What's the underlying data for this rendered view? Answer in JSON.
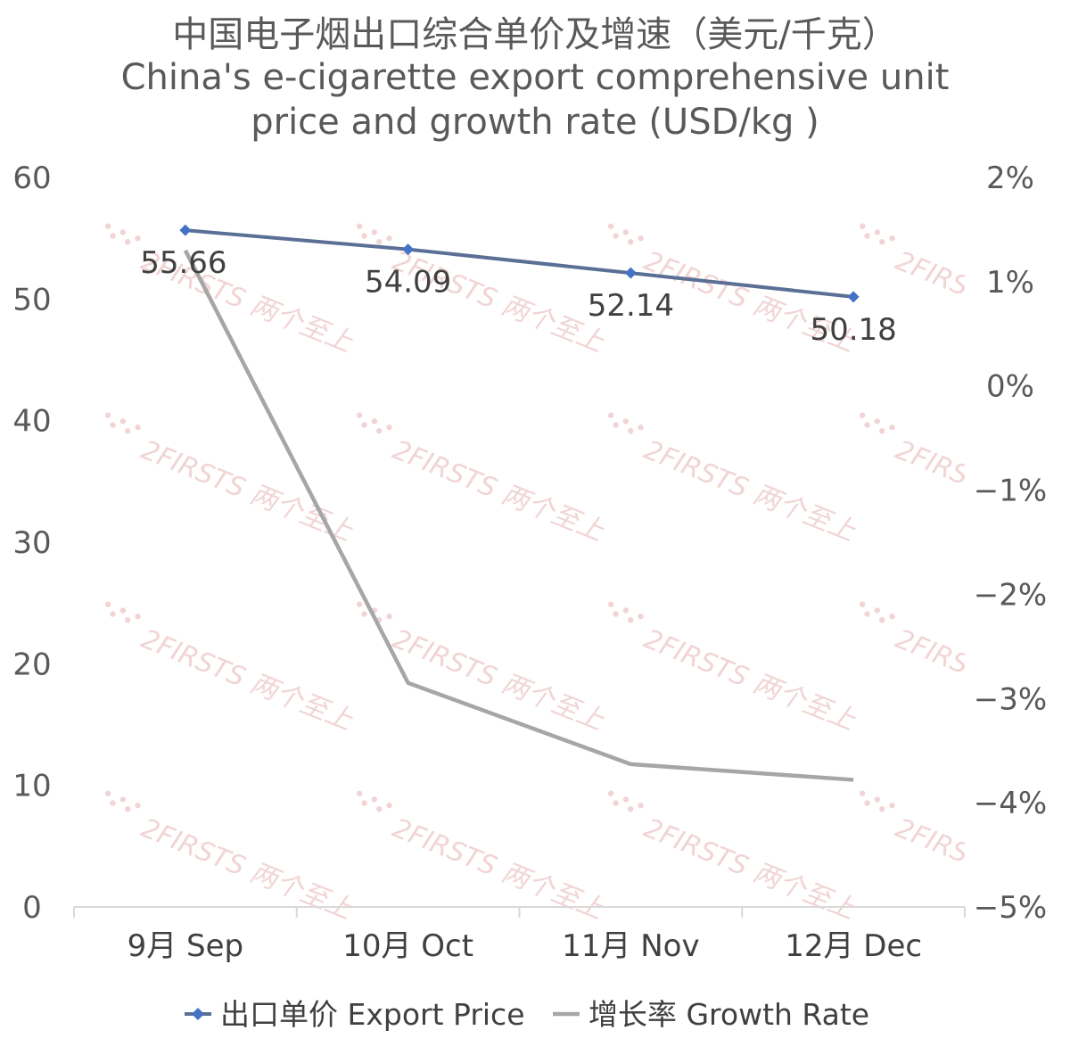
{
  "chart_data": {
    "type": "line",
    "title_lines": [
      "中国电子烟出口综合单价及增速（美元/千克）",
      "China's e-cigarette export comprehensive unit",
      "price and growth rate (USD/kg )"
    ],
    "categories": [
      "9月 Sep",
      "10月 Oct",
      "11月 Nov",
      "12月 Dec"
    ],
    "series": [
      {
        "name": "出口单价 Export Price",
        "axis": "left",
        "values": [
          55.66,
          54.09,
          52.14,
          50.18
        ],
        "data_labels": [
          "55.66",
          "54.09",
          "52.14",
          "50.18"
        ],
        "color": "#5b6f95",
        "marker": "diamond",
        "marker_color": "#4472c4"
      },
      {
        "name": "增长率 Growth Rate",
        "axis": "right",
        "values": [
          1.3,
          -2.85,
          -3.63,
          -3.78
        ],
        "color": "#a6a6a6",
        "marker": "none"
      }
    ],
    "y_left": {
      "lim": [
        0,
        60
      ],
      "ticks": [
        0,
        10,
        20,
        30,
        40,
        50,
        60
      ],
      "tick_labels": [
        "0",
        "10",
        "20",
        "30",
        "40",
        "50",
        "60"
      ]
    },
    "y_right": {
      "lim": [
        -5,
        2
      ],
      "ticks": [
        -5,
        -4,
        -3,
        -2,
        -1,
        0,
        1,
        2
      ],
      "tick_labels": [
        "−5%",
        "−4%",
        "−3%",
        "−2%",
        "−1%",
        "0%",
        "1%",
        "2%"
      ]
    },
    "legend": {
      "position": "bottom",
      "entries": [
        "出口单价 Export Price",
        "增长率 Growth Rate"
      ]
    },
    "watermark": "2FIRSTS 两个至上",
    "grid": false
  }
}
